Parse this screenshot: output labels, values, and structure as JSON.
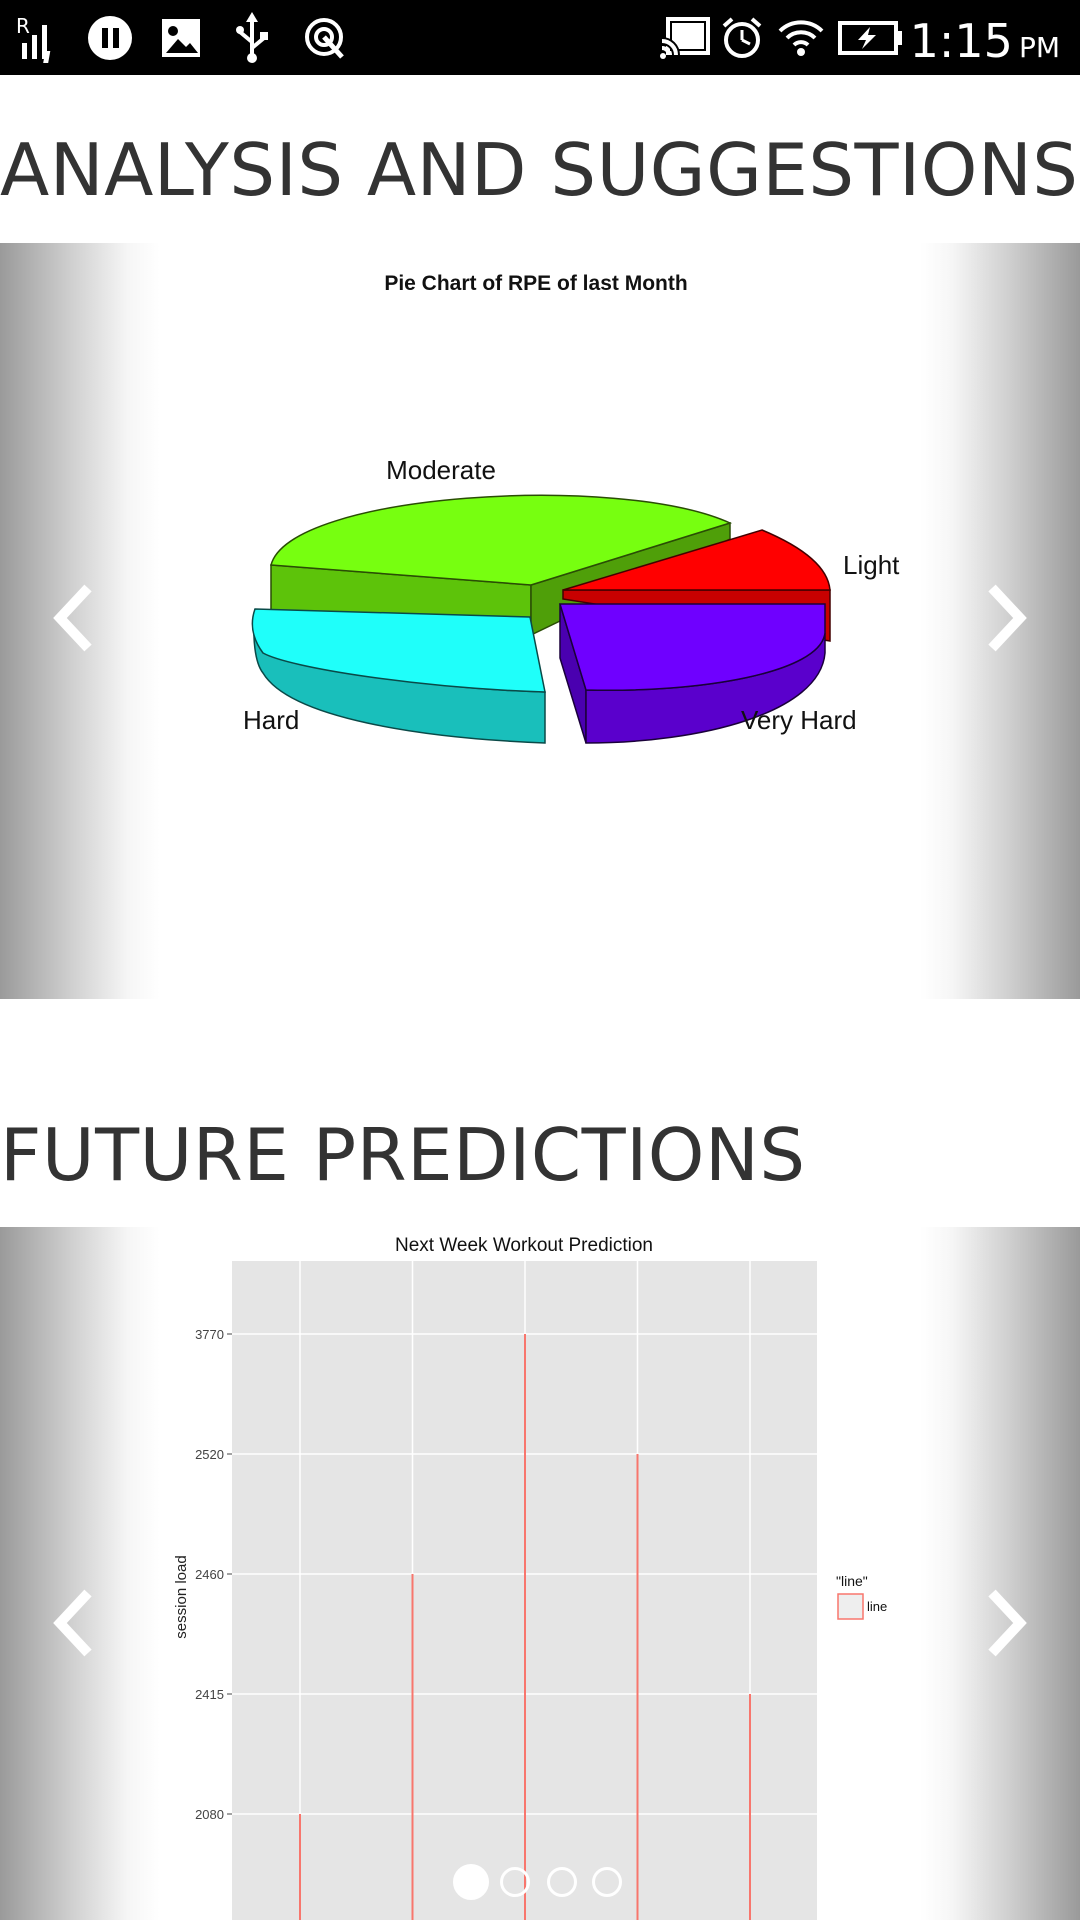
{
  "status_bar": {
    "time": "1:15",
    "ampm": "PM",
    "left_icons": [
      "signal-icon",
      "pause-icon",
      "image-icon",
      "usb-icon",
      "touch-icon"
    ],
    "right_icons": [
      "cast-icon",
      "alarm-icon",
      "wifi-icon",
      "battery-icon"
    ]
  },
  "sections": {
    "analysis_title": "ANALYSIS AND SUGGESTIONS",
    "future_title": "FUTURE PREDICTIONS"
  },
  "carousel_dots": {
    "count": 4,
    "active": 0
  },
  "chart_data": [
    {
      "type": "pie",
      "title": "Pie Chart of RPE of last Month",
      "labels": [
        "Moderate",
        "Light",
        "Very Hard",
        "Hard"
      ],
      "values": [
        37,
        14,
        25,
        24
      ],
      "colors": [
        "#77ff10",
        "#ff0000",
        "#6f00ff",
        "#1ffffa"
      ]
    },
    {
      "type": "bar",
      "title": "Next Week Workout Prediction",
      "ylabel": "session load",
      "xlabel": "",
      "y_tick_labels": [
        "3770",
        "2520",
        "2460",
        "2415",
        "2080"
      ],
      "values": [
        "2080",
        "2460",
        "3770",
        "2520",
        "2415"
      ],
      "legend_title": "\"line\"",
      "legend_entry": "line",
      "bar_color": "#f8766d",
      "panel_color": "#e5e5e5"
    }
  ]
}
